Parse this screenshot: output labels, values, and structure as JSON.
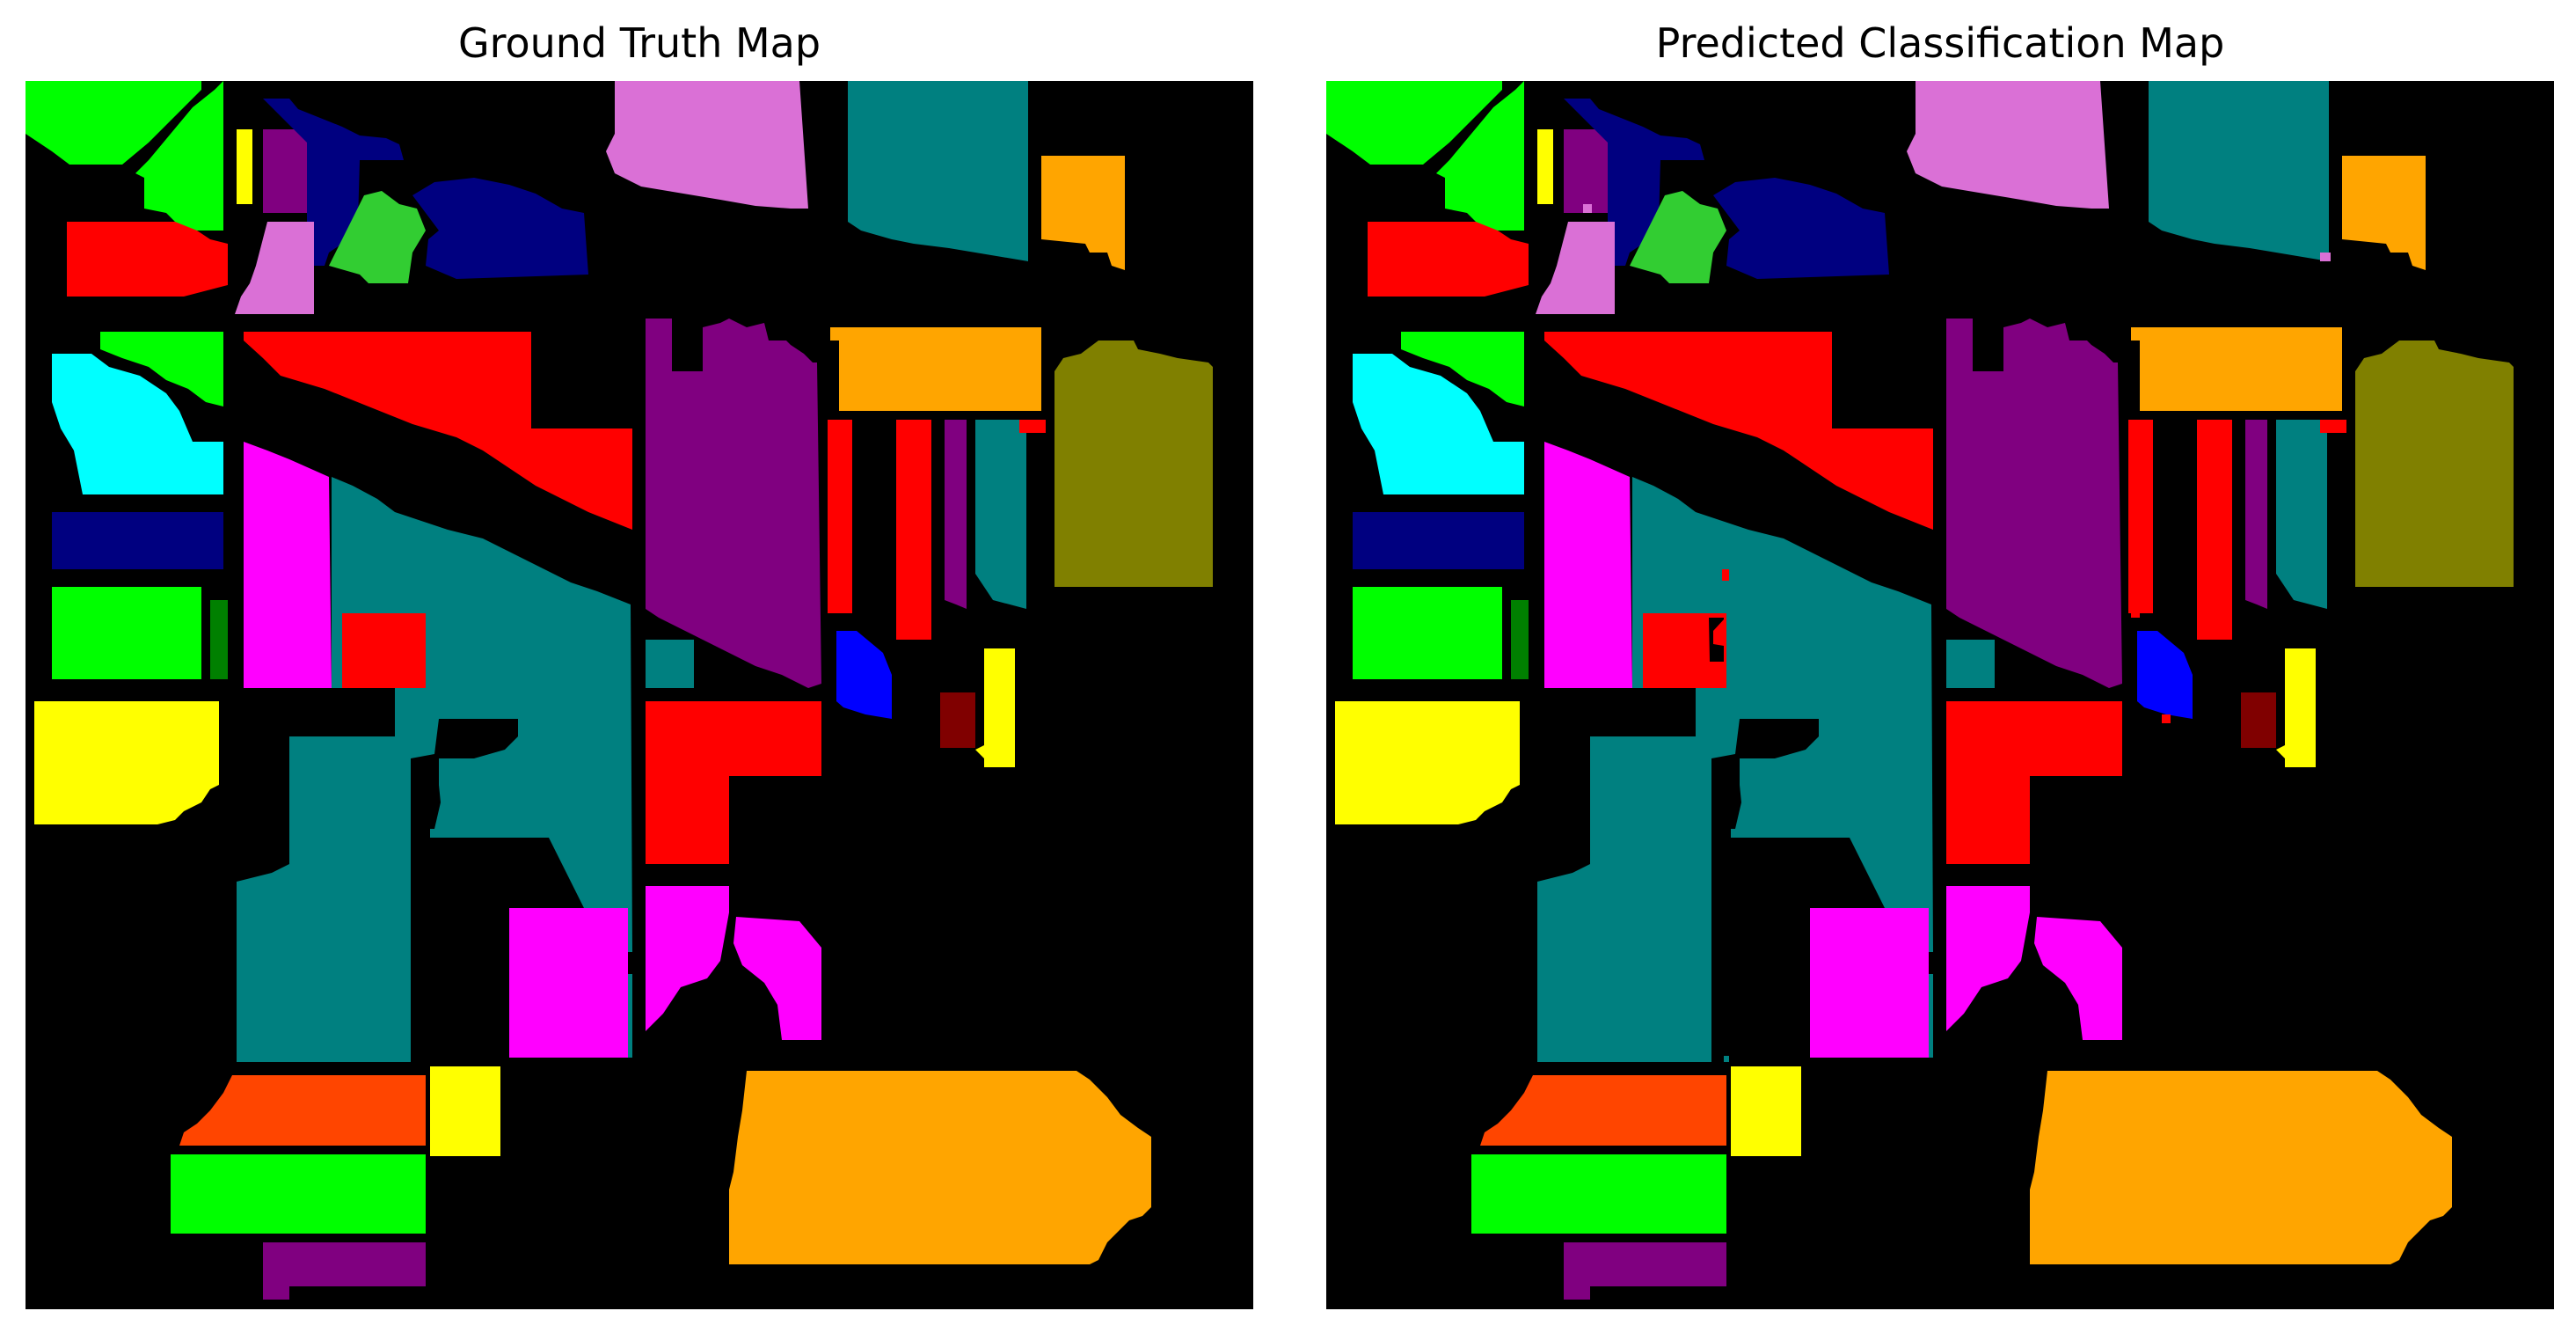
{
  "panels": [
    {
      "title": "Ground Truth Map"
    },
    {
      "title": "Predicted Classification Map"
    }
  ],
  "class_colors": {
    "background": "#000000",
    "lime": "#00ff00",
    "navy": "#000080",
    "yellow": "#ffff00",
    "purple": "#800080",
    "orchid": "#da70d6",
    "limegreen": "#32cd32",
    "red": "#ff0000",
    "teal": "#008080",
    "orange": "#ffa500",
    "cyan": "#00ffff",
    "olive": "#808000",
    "magenta": "#ff00ff",
    "green": "#008000",
    "blue": "#0000ff",
    "maroon": "#800000",
    "orangered": "#ff4500"
  }
}
